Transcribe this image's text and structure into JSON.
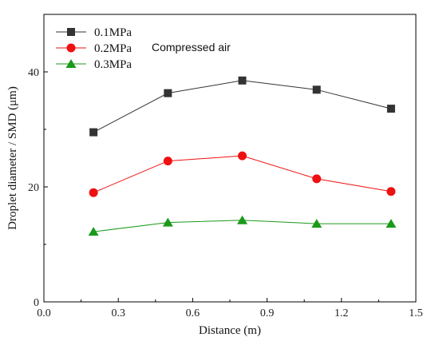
{
  "chart_data": {
    "type": "line",
    "xlabel": "Distance (m)",
    "ylabel": "Droplet diameter / SMD (μm)",
    "xlim": [
      0.0,
      1.5
    ],
    "ylim": [
      0,
      50
    ],
    "xticks": [
      "0.0",
      "0.3",
      "0.6",
      "0.9",
      "1.2",
      "1.5"
    ],
    "yticks": [
      "0",
      "20",
      "40"
    ],
    "grid": false,
    "legend_position": "top-left",
    "annotation": "Compressed air",
    "x": [
      0.2,
      0.5,
      0.8,
      1.1,
      1.4
    ],
    "series": [
      {
        "name": "0.1MPa",
        "values": [
          29.5,
          36.3,
          38.5,
          36.9,
          33.6
        ],
        "color": "#333333",
        "marker": "square"
      },
      {
        "name": "0.2MPa",
        "values": [
          19.0,
          24.5,
          25.4,
          21.4,
          19.2
        ],
        "color": "#ee1111",
        "marker": "circle"
      },
      {
        "name": "0.3MPa",
        "values": [
          12.2,
          13.8,
          14.2,
          13.6,
          13.6
        ],
        "color": "#1a9a1a",
        "marker": "triangle"
      }
    ]
  }
}
